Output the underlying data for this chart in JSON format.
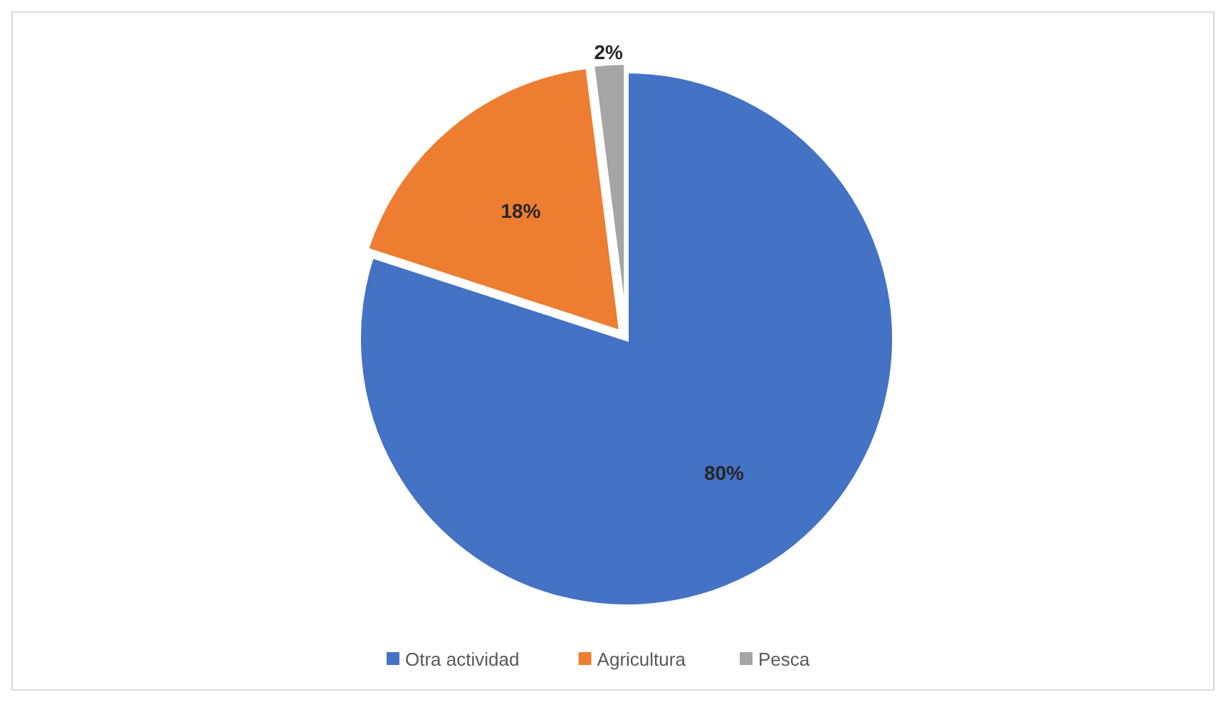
{
  "chart_data": {
    "type": "pie",
    "categories": [
      "Otra actividad",
      "Agricultura",
      "Pesca"
    ],
    "values": [
      80,
      18,
      2
    ],
    "colors": [
      "#4472c4",
      "#ed7d31",
      "#a5a5a5"
    ],
    "value_labels": [
      "80%",
      "18%",
      "2%"
    ],
    "legend": "bottom"
  }
}
